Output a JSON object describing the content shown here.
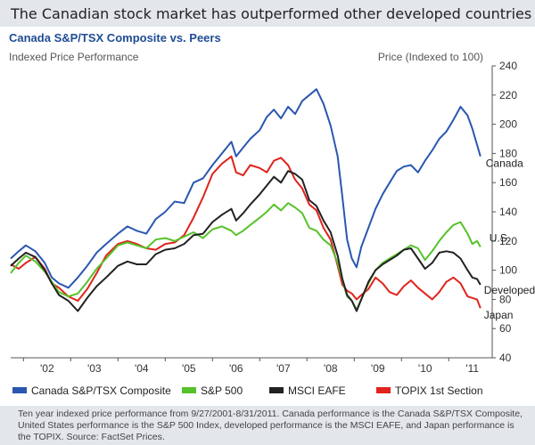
{
  "header": {
    "title": "The Canadian stock market has outperformed other developed countries"
  },
  "chart_data": {
    "type": "line",
    "title": "Canada S&P/TSX Composite vs. Peers",
    "subtitle": "Indexed Price Performance",
    "ylabel": "Price (Indexed to 100)",
    "ylim": [
      40,
      240
    ],
    "yticks": [
      40,
      60,
      80,
      100,
      120,
      140,
      160,
      180,
      200,
      220,
      240
    ],
    "xlim": [
      2001.73,
      2011.92
    ],
    "xticks": [
      {
        "label": "'02",
        "x": 2002.0
      },
      {
        "label": "'03",
        "x": 2003.0
      },
      {
        "label": "'04",
        "x": 2004.0
      },
      {
        "label": "'05",
        "x": 2005.0
      },
      {
        "label": "'06",
        "x": 2006.0
      },
      {
        "label": "'07",
        "x": 2007.0
      },
      {
        "label": "'08",
        "x": 2008.0
      },
      {
        "label": "'09",
        "x": 2009.0
      },
      {
        "label": "'10",
        "x": 2010.0
      },
      {
        "label": "'11",
        "x": 2011.0
      }
    ],
    "grid": false,
    "legend": "bottom",
    "series": [
      {
        "name": "Canada S&P/TSX Composite",
        "end_label": "Canada",
        "color": "#2a57b0",
        "x": [
          2001.73,
          2001.9,
          2002.05,
          2002.25,
          2002.45,
          2002.6,
          2002.75,
          2002.95,
          2003.15,
          2003.35,
          2003.55,
          2003.75,
          2004.0,
          2004.2,
          2004.4,
          2004.6,
          2004.8,
          2005.0,
          2005.2,
          2005.4,
          2005.6,
          2005.8,
          2006.0,
          2006.2,
          2006.4,
          2006.5,
          2006.65,
          2006.8,
          2007.0,
          2007.15,
          2007.3,
          2007.45,
          2007.6,
          2007.75,
          2007.9,
          2008.05,
          2008.2,
          2008.35,
          2008.5,
          2008.65,
          2008.75,
          2008.85,
          2008.95,
          2009.05,
          2009.15,
          2009.3,
          2009.45,
          2009.6,
          2009.75,
          2009.9,
          2010.05,
          2010.2,
          2010.35,
          2010.5,
          2010.65,
          2010.8,
          2010.95,
          2011.1,
          2011.25,
          2011.4,
          2011.5,
          2011.6,
          2011.67
        ],
        "y": [
          108,
          113,
          117,
          113,
          105,
          95,
          91,
          88,
          95,
          103,
          112,
          118,
          125,
          130,
          127,
          125,
          135,
          140,
          147,
          146,
          160,
          163,
          172,
          180,
          188,
          178,
          184,
          190,
          196,
          205,
          210,
          204,
          212,
          207,
          216,
          220,
          224,
          214,
          199,
          178,
          150,
          121,
          108,
          102,
          116,
          129,
          142,
          152,
          160,
          168,
          171,
          172,
          167,
          175,
          182,
          190,
          195,
          203,
          212,
          206,
          197,
          186,
          178
        ]
      },
      {
        "name": "S&P 500",
        "end_label": "U.S.",
        "color": "#56c229",
        "x": [
          2001.73,
          2001.9,
          2002.05,
          2002.25,
          2002.45,
          2002.6,
          2002.75,
          2002.95,
          2003.15,
          2003.35,
          2003.55,
          2003.75,
          2004.0,
          2004.2,
          2004.4,
          2004.6,
          2004.8,
          2005.0,
          2005.2,
          2005.4,
          2005.6,
          2005.8,
          2006.0,
          2006.2,
          2006.4,
          2006.5,
          2006.65,
          2006.8,
          2007.0,
          2007.15,
          2007.3,
          2007.45,
          2007.6,
          2007.75,
          2007.9,
          2008.05,
          2008.2,
          2008.35,
          2008.5,
          2008.65,
          2008.75,
          2008.85,
          2008.95,
          2009.05,
          2009.15,
          2009.3,
          2009.45,
          2009.6,
          2009.75,
          2009.9,
          2010.05,
          2010.2,
          2010.35,
          2010.5,
          2010.65,
          2010.8,
          2010.95,
          2011.1,
          2011.25,
          2011.4,
          2011.5,
          2011.6,
          2011.67
        ],
        "y": [
          98,
          105,
          110,
          106,
          99,
          92,
          85,
          82,
          84,
          92,
          101,
          108,
          117,
          119,
          117,
          115,
          121,
          122,
          120,
          123,
          126,
          122,
          128,
          130,
          127,
          124,
          127,
          131,
          136,
          140,
          145,
          141,
          146,
          143,
          139,
          129,
          127,
          121,
          117,
          105,
          93,
          82,
          79,
          73,
          80,
          91,
          100,
          105,
          108,
          111,
          114,
          117,
          115,
          107,
          113,
          120,
          126,
          131,
          133,
          125,
          118,
          120,
          116
        ]
      },
      {
        "name": "MSCI EAFE",
        "end_label": "Developed",
        "color": "#222222",
        "x": [
          2001.73,
          2001.9,
          2002.05,
          2002.25,
          2002.45,
          2002.6,
          2002.75,
          2002.95,
          2003.15,
          2003.35,
          2003.55,
          2003.75,
          2004.0,
          2004.2,
          2004.4,
          2004.6,
          2004.8,
          2005.0,
          2005.2,
          2005.4,
          2005.6,
          2005.8,
          2006.0,
          2006.2,
          2006.4,
          2006.5,
          2006.65,
          2006.8,
          2007.0,
          2007.15,
          2007.3,
          2007.45,
          2007.6,
          2007.75,
          2007.9,
          2008.05,
          2008.2,
          2008.35,
          2008.5,
          2008.65,
          2008.75,
          2008.85,
          2008.95,
          2009.05,
          2009.15,
          2009.3,
          2009.45,
          2009.6,
          2009.75,
          2009.9,
          2010.05,
          2010.2,
          2010.35,
          2010.5,
          2010.65,
          2010.8,
          2010.95,
          2011.1,
          2011.25,
          2011.4,
          2011.5,
          2011.6,
          2011.67
        ],
        "y": [
          103,
          108,
          112,
          109,
          100,
          91,
          83,
          79,
          72,
          81,
          89,
          95,
          103,
          106,
          104,
          104,
          111,
          114,
          115,
          118,
          124,
          125,
          133,
          138,
          142,
          134,
          139,
          145,
          152,
          158,
          164,
          160,
          168,
          166,
          162,
          148,
          144,
          134,
          126,
          110,
          94,
          83,
          79,
          72,
          80,
          92,
          100,
          104,
          107,
          110,
          114,
          115,
          108,
          101,
          105,
          112,
          113,
          112,
          108,
          100,
          95,
          94,
          90
        ]
      },
      {
        "name": "TOPIX 1st Section",
        "end_label": "Japan",
        "color": "#e0231c",
        "x": [
          2001.73,
          2001.9,
          2002.05,
          2002.25,
          2002.45,
          2002.6,
          2002.75,
          2002.95,
          2003.15,
          2003.35,
          2003.55,
          2003.75,
          2004.0,
          2004.2,
          2004.4,
          2004.6,
          2004.8,
          2005.0,
          2005.2,
          2005.4,
          2005.6,
          2005.8,
          2006.0,
          2006.2,
          2006.4,
          2006.5,
          2006.65,
          2006.8,
          2007.0,
          2007.15,
          2007.3,
          2007.45,
          2007.6,
          2007.75,
          2007.9,
          2008.05,
          2008.2,
          2008.35,
          2008.5,
          2008.65,
          2008.75,
          2008.85,
          2008.95,
          2009.05,
          2009.15,
          2009.3,
          2009.45,
          2009.6,
          2009.75,
          2009.9,
          2010.05,
          2010.2,
          2010.35,
          2010.5,
          2010.65,
          2010.8,
          2010.95,
          2011.1,
          2011.25,
          2011.4,
          2011.5,
          2011.6,
          2011.67
        ],
        "y": [
          104,
          101,
          105,
          109,
          101,
          91,
          88,
          82,
          79,
          87,
          98,
          110,
          118,
          120,
          118,
          115,
          114,
          118,
          119,
          124,
          136,
          150,
          166,
          173,
          178,
          167,
          165,
          172,
          170,
          167,
          175,
          177,
          172,
          162,
          156,
          145,
          141,
          129,
          121,
          103,
          90,
          86,
          84,
          80,
          83,
          87,
          95,
          91,
          85,
          83,
          89,
          93,
          88,
          84,
          80,
          85,
          92,
          95,
          91,
          82,
          81,
          80,
          74
        ]
      }
    ]
  },
  "footnote": "Ten year indexed price performance from 9/27/2001-8/31/2011. Canada performance is the Canada S&P/TSX Composite, United States performance is the S&P 500 Index, developed performance is the MSCI EAFE, and Japan performance is the TOPIX. Source: FactSet Prices."
}
